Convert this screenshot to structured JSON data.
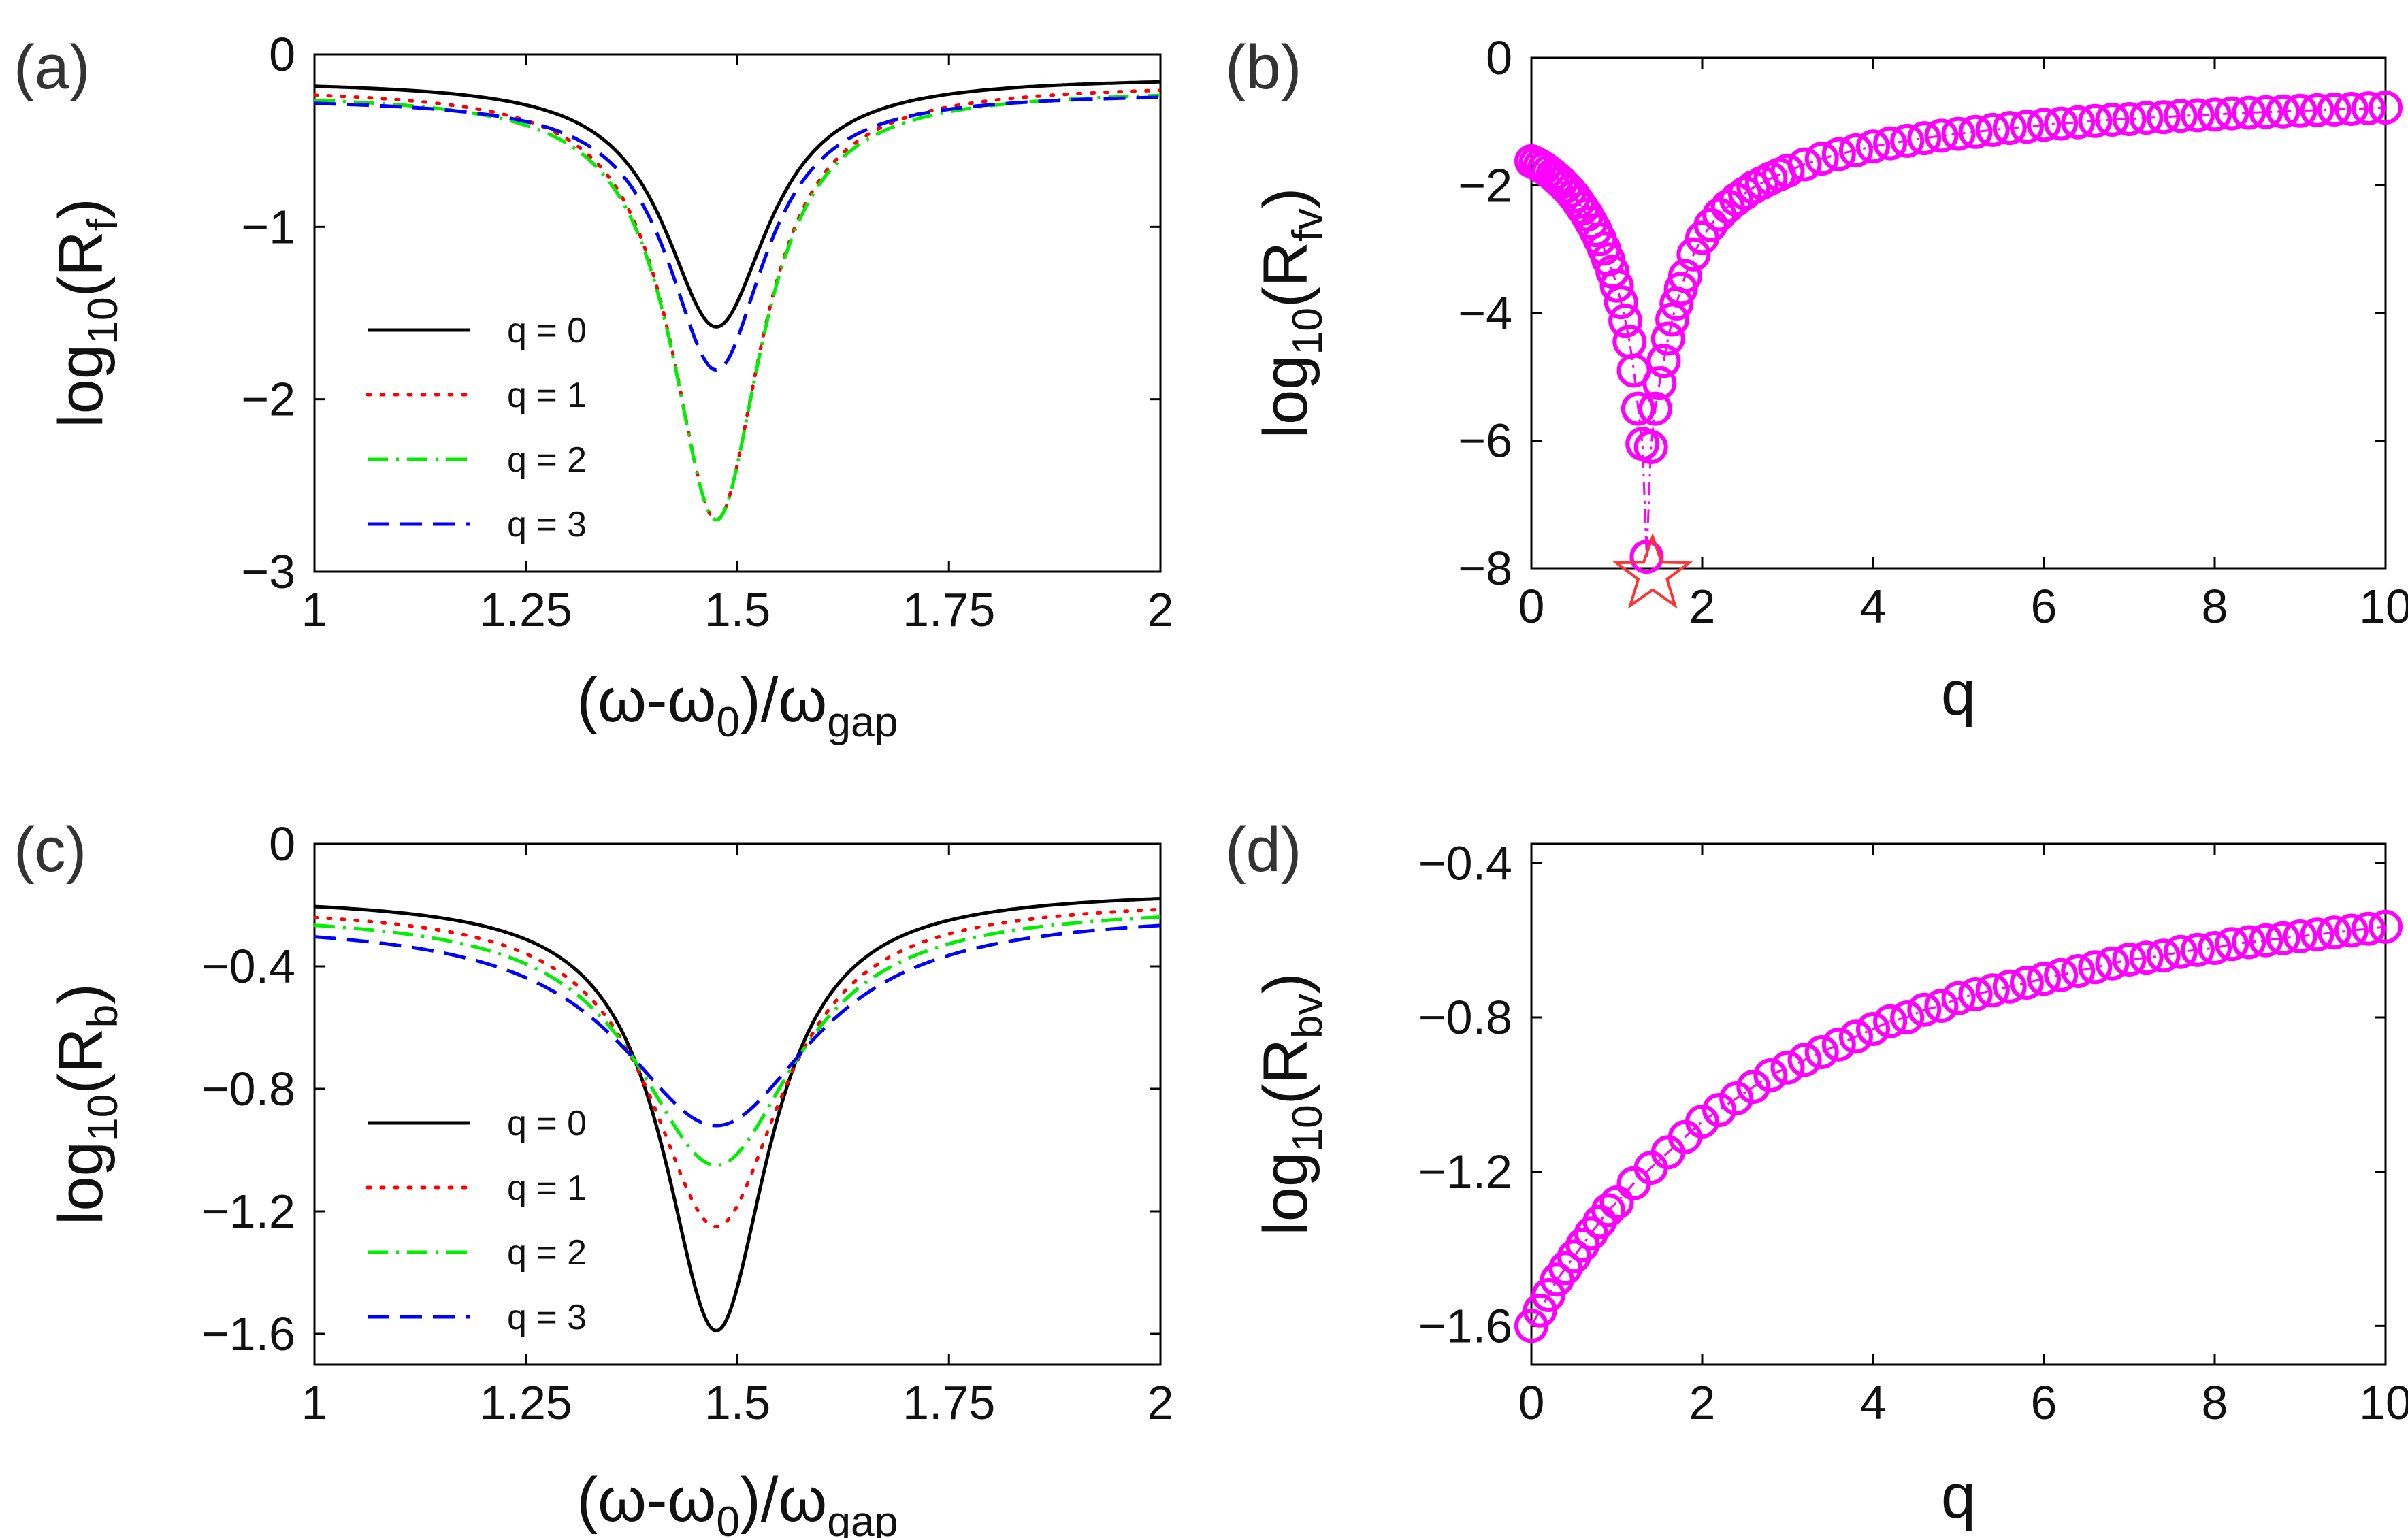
{
  "chart_data": [
    {
      "id": "a",
      "type": "line",
      "panel_label": "(a)",
      "ylabel": {
        "main": "log",
        "sub": "10",
        "mid": "(R",
        "sub2": "f",
        "end": ")"
      },
      "xlabel": {
        "pre": "(ω-ω",
        "sub": "0",
        "mid": ")/ω",
        "sub2": "gap"
      },
      "xlim": [
        1,
        2
      ],
      "ylim": [
        -3,
        0
      ],
      "xticks": [
        "1",
        "1.25",
        "1.5",
        "1.75",
        "2"
      ],
      "xtick_values": [
        1,
        1.25,
        1.5,
        1.75,
        2
      ],
      "yticks": [
        "-3",
        "-2",
        "-1",
        "0"
      ],
      "ytick_values": [
        -3,
        -2,
        -1,
        0
      ],
      "center": 1.475,
      "series": [
        {
          "name": "q = 0",
          "color": "#000000",
          "dash": "solid",
          "end_left": -0.15,
          "end_right": -0.13,
          "min": -1.58,
          "width": 0.075
        },
        {
          "name": "q = 1",
          "color": "#ff0000",
          "dash": "dotted",
          "end_left": -0.19,
          "end_right": -0.17,
          "min": -2.7,
          "width": 0.065
        },
        {
          "name": "q = 2",
          "color": "#00ee00",
          "dash": "dashdot",
          "end_left": -0.22,
          "end_right": -0.2,
          "min": -2.7,
          "width": 0.065
        },
        {
          "name": "q = 3",
          "color": "#0000ff",
          "dash": "dashed",
          "end_left": -0.25,
          "end_right": -0.22,
          "min": -1.83,
          "width": 0.07
        }
      ]
    },
    {
      "id": "b",
      "type": "scatter",
      "panel_label": "(b)",
      "ylabel": {
        "main": "log",
        "sub": "10",
        "mid": "(R",
        "sub2": "fv",
        "end": ")"
      },
      "xlabel": {
        "pre": "q"
      },
      "xlim": [
        0,
        10
      ],
      "ylim": [
        -8,
        0
      ],
      "xticks": [
        "0",
        "2",
        "4",
        "6",
        "8",
        "10"
      ],
      "xtick_values": [
        0,
        2,
        4,
        6,
        8,
        10
      ],
      "yticks": [
        "-8",
        "-6",
        "-4",
        "-2",
        "0"
      ],
      "ytick_values": [
        -8,
        -6,
        -4,
        -2,
        0
      ],
      "marker_color": "#ff00ff",
      "points": [
        [
          0.0,
          -1.62
        ],
        [
          0.05,
          -1.65
        ],
        [
          0.1,
          -1.69
        ],
        [
          0.15,
          -1.73
        ],
        [
          0.2,
          -1.78
        ],
        [
          0.25,
          -1.83
        ],
        [
          0.3,
          -1.89
        ],
        [
          0.35,
          -1.95
        ],
        [
          0.4,
          -2.02
        ],
        [
          0.45,
          -2.09
        ],
        [
          0.5,
          -2.17
        ],
        [
          0.55,
          -2.26
        ],
        [
          0.6,
          -2.36
        ],
        [
          0.65,
          -2.46
        ],
        [
          0.7,
          -2.58
        ],
        [
          0.75,
          -2.7
        ],
        [
          0.8,
          -2.84
        ],
        [
          0.85,
          -2.99
        ],
        [
          0.9,
          -3.16
        ],
        [
          0.95,
          -3.35
        ],
        [
          1.0,
          -3.57
        ],
        [
          1.05,
          -3.83
        ],
        [
          1.1,
          -4.12
        ],
        [
          1.15,
          -4.45
        ],
        [
          1.2,
          -4.9
        ],
        [
          1.25,
          -5.5
        ],
        [
          1.3,
          -6.05
        ],
        [
          1.35,
          -7.82
        ],
        [
          1.4,
          -6.1
        ],
        [
          1.45,
          -5.5
        ],
        [
          1.5,
          -5.1
        ],
        [
          1.55,
          -4.75
        ],
        [
          1.6,
          -4.4
        ],
        [
          1.65,
          -4.1
        ],
        [
          1.7,
          -3.85
        ],
        [
          1.75,
          -3.62
        ],
        [
          1.8,
          -3.42
        ],
        [
          1.9,
          -3.08
        ],
        [
          2.0,
          -2.82
        ],
        [
          2.1,
          -2.62
        ],
        [
          2.2,
          -2.46
        ],
        [
          2.3,
          -2.33
        ],
        [
          2.4,
          -2.22
        ],
        [
          2.5,
          -2.12
        ],
        [
          2.6,
          -2.03
        ],
        [
          2.7,
          -1.96
        ],
        [
          2.8,
          -1.89
        ],
        [
          2.9,
          -1.83
        ],
        [
          3.0,
          -1.77
        ],
        [
          3.2,
          -1.67
        ],
        [
          3.4,
          -1.58
        ],
        [
          3.6,
          -1.51
        ],
        [
          3.8,
          -1.45
        ],
        [
          4.0,
          -1.39
        ],
        [
          4.2,
          -1.34
        ],
        [
          4.4,
          -1.3
        ],
        [
          4.6,
          -1.26
        ],
        [
          4.8,
          -1.22
        ],
        [
          5.0,
          -1.19
        ],
        [
          5.2,
          -1.16
        ],
        [
          5.4,
          -1.13
        ],
        [
          5.6,
          -1.1
        ],
        [
          5.8,
          -1.08
        ],
        [
          6.0,
          -1.05
        ],
        [
          6.2,
          -1.03
        ],
        [
          6.4,
          -1.01
        ],
        [
          6.6,
          -0.99
        ],
        [
          6.8,
          -0.97
        ],
        [
          7.0,
          -0.96
        ],
        [
          7.2,
          -0.94
        ],
        [
          7.4,
          -0.93
        ],
        [
          7.6,
          -0.91
        ],
        [
          7.8,
          -0.9
        ],
        [
          8.0,
          -0.89
        ],
        [
          8.2,
          -0.87
        ],
        [
          8.4,
          -0.86
        ],
        [
          8.6,
          -0.85
        ],
        [
          8.8,
          -0.84
        ],
        [
          9.0,
          -0.83
        ],
        [
          9.2,
          -0.82
        ],
        [
          9.4,
          -0.81
        ],
        [
          9.6,
          -0.8
        ],
        [
          9.8,
          -0.79
        ],
        [
          10.0,
          -0.78
        ]
      ],
      "star": {
        "x": 1.42,
        "y": -8.1,
        "color": "#ff3333"
      }
    },
    {
      "id": "c",
      "type": "line",
      "panel_label": "(c)",
      "ylabel": {
        "main": "log",
        "sub": "10",
        "mid": "(R",
        "sub2": "b",
        "end": ")"
      },
      "xlabel": {
        "pre": "(ω-ω",
        "sub": "0",
        "mid": ")/ω",
        "sub2": "gap"
      },
      "xlim": [
        1,
        2
      ],
      "ylim": [
        -1.7,
        0
      ],
      "xticks": [
        "1",
        "1.25",
        "1.5",
        "1.75",
        "2"
      ],
      "xtick_values": [
        1,
        1.25,
        1.5,
        1.75,
        2
      ],
      "yticks": [
        "-1.6",
        "-1.2",
        "-0.8",
        "-0.4",
        "0"
      ],
      "ytick_values": [
        -1.6,
        -1.2,
        -0.8,
        -0.4,
        0
      ],
      "center": 1.475,
      "series": [
        {
          "name": "q = 0",
          "color": "#000000",
          "dash": "solid",
          "end_left": -0.17,
          "end_right": -0.15,
          "min": -1.59,
          "width": 0.075
        },
        {
          "name": "q = 1",
          "color": "#ff0000",
          "dash": "dotted",
          "end_left": -0.2,
          "end_right": -0.18,
          "min": -1.25,
          "width": 0.095
        },
        {
          "name": "q = 2",
          "color": "#00ee00",
          "dash": "dashdot",
          "end_left": -0.22,
          "end_right": -0.2,
          "min": -1.05,
          "width": 0.115
        },
        {
          "name": "q = 3",
          "color": "#0000ff",
          "dash": "dashed",
          "end_left": -0.25,
          "end_right": -0.22,
          "min": -0.92,
          "width": 0.14
        }
      ]
    },
    {
      "id": "d",
      "type": "scatter",
      "panel_label": "(d)",
      "ylabel": {
        "main": "log",
        "sub": "10",
        "mid": "(R",
        "sub2": "bv",
        "end": ")"
      },
      "xlabel": {
        "pre": "q"
      },
      "xlim": [
        0,
        10
      ],
      "ylim": [
        -1.7,
        -0.35
      ],
      "xticks": [
        "0",
        "2",
        "4",
        "6",
        "8",
        "10"
      ],
      "xtick_values": [
        0,
        2,
        4,
        6,
        8,
        10
      ],
      "yticks": [
        "-1.6",
        "-1.2",
        "-0.8",
        "-0.4"
      ],
      "ytick_values": [
        -1.6,
        -1.2,
        -0.8,
        -0.4
      ],
      "marker_color": "#ff00ff",
      "points": [
        [
          0.0,
          -1.6
        ],
        [
          0.1,
          -1.56
        ],
        [
          0.2,
          -1.52
        ],
        [
          0.3,
          -1.48
        ],
        [
          0.4,
          -1.45
        ],
        [
          0.5,
          -1.42
        ],
        [
          0.6,
          -1.39
        ],
        [
          0.7,
          -1.36
        ],
        [
          0.8,
          -1.33
        ],
        [
          0.9,
          -1.3
        ],
        [
          1.0,
          -1.28
        ],
        [
          1.2,
          -1.23
        ],
        [
          1.4,
          -1.19
        ],
        [
          1.6,
          -1.15
        ],
        [
          1.8,
          -1.11
        ],
        [
          2.0,
          -1.07
        ],
        [
          2.2,
          -1.04
        ],
        [
          2.4,
          -1.01
        ],
        [
          2.6,
          -0.98
        ],
        [
          2.8,
          -0.95
        ],
        [
          3.0,
          -0.93
        ],
        [
          3.2,
          -0.91
        ],
        [
          3.4,
          -0.89
        ],
        [
          3.6,
          -0.87
        ],
        [
          3.8,
          -0.85
        ],
        [
          4.0,
          -0.83
        ],
        [
          4.2,
          -0.81
        ],
        [
          4.4,
          -0.8
        ],
        [
          4.6,
          -0.78
        ],
        [
          4.8,
          -0.77
        ],
        [
          5.0,
          -0.75
        ],
        [
          5.2,
          -0.74
        ],
        [
          5.4,
          -0.73
        ],
        [
          5.6,
          -0.72
        ],
        [
          5.8,
          -0.71
        ],
        [
          6.0,
          -0.7
        ],
        [
          6.2,
          -0.69
        ],
        [
          6.4,
          -0.68
        ],
        [
          6.6,
          -0.67
        ],
        [
          6.8,
          -0.66
        ],
        [
          7.0,
          -0.65
        ],
        [
          7.2,
          -0.645
        ],
        [
          7.4,
          -0.64
        ],
        [
          7.6,
          -0.63
        ],
        [
          7.8,
          -0.625
        ],
        [
          8.0,
          -0.62
        ],
        [
          8.2,
          -0.61
        ],
        [
          8.4,
          -0.605
        ],
        [
          8.6,
          -0.6
        ],
        [
          8.8,
          -0.595
        ],
        [
          9.0,
          -0.59
        ],
        [
          9.2,
          -0.585
        ],
        [
          9.4,
          -0.58
        ],
        [
          9.6,
          -0.575
        ],
        [
          9.8,
          -0.57
        ],
        [
          10.0,
          -0.565
        ]
      ]
    }
  ]
}
